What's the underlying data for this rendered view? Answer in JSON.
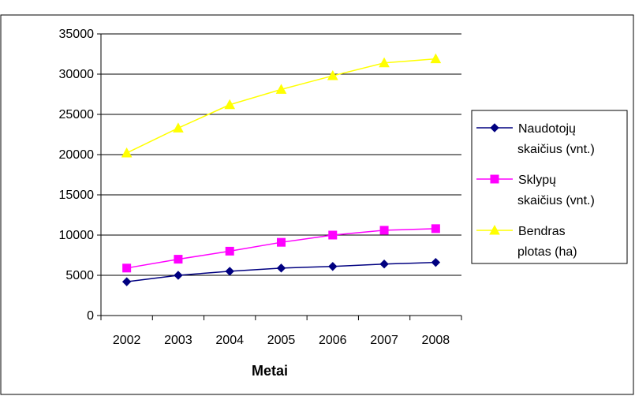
{
  "chart_data": {
    "type": "line",
    "title": "",
    "xlabel": "Metai",
    "ylabel": "",
    "ylim": [
      0,
      35000
    ],
    "yticks": [
      0,
      5000,
      10000,
      15000,
      20000,
      25000,
      30000,
      35000
    ],
    "categories": [
      "2002",
      "2003",
      "2004",
      "2005",
      "2006",
      "2007",
      "2008"
    ],
    "grid": "horizontal",
    "legend_position": "right",
    "series": [
      {
        "name": "Naudotojų skaičius (vnt.)",
        "legend_lines": [
          "Naudotojų",
          "skaičius (vnt.)"
        ],
        "values": [
          4200,
          5000,
          5500,
          5900,
          6100,
          6400,
          6600
        ],
        "color": "#000080",
        "marker": "diamond"
      },
      {
        "name": "Sklypų skaičius (vnt.)",
        "legend_lines": [
          "Sklypų",
          "skaičius (vnt.)"
        ],
        "values": [
          5900,
          7000,
          8000,
          9100,
          10000,
          10600,
          10800
        ],
        "color": "#ff00ff",
        "marker": "square"
      },
      {
        "name": "Bendras plotas (ha)",
        "legend_lines": [
          "Bendras",
          "plotas (ha)"
        ],
        "values": [
          20200,
          23300,
          26200,
          28100,
          29800,
          31400,
          31900
        ],
        "color": "#ffff00",
        "marker": "triangle"
      }
    ]
  }
}
